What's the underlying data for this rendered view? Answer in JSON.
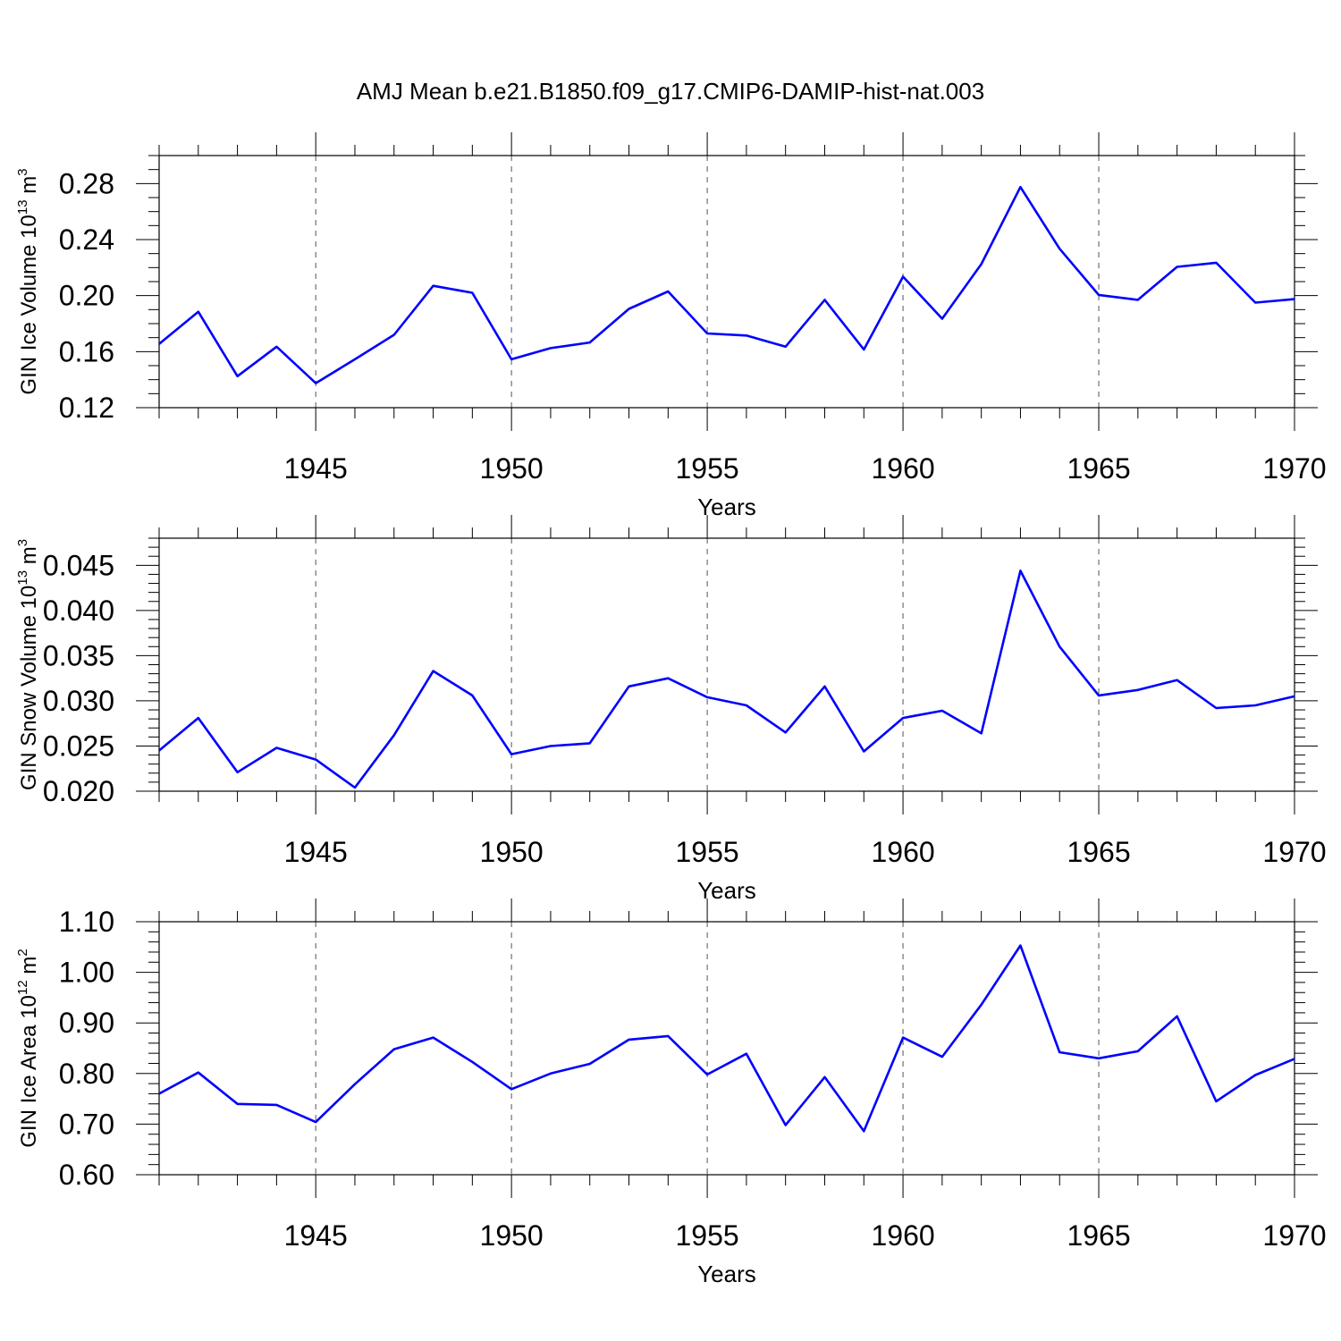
{
  "title": "AMJ Mean b.e21.B1850.f09_g17.CMIP6-DAMIP-hist-nat.003",
  "colors": {
    "line": "#0000ff",
    "axis": "#000000",
    "grid": "#555555"
  },
  "chart_data": [
    {
      "type": "line",
      "ylabel": {
        "base": "GIN Ice Volume 10",
        "exp": "13",
        "unit": " m",
        "unit_exp": "3"
      },
      "xlabel": "Years",
      "xlim": [
        1941,
        1970
      ],
      "ylim": [
        0.12,
        0.3
      ],
      "xticks": [
        1945,
        1950,
        1955,
        1960,
        1965,
        1970
      ],
      "xtick_labels": [
        "1945",
        "1950",
        "1955",
        "1960",
        "1965",
        "1970"
      ],
      "yticks": [
        0.12,
        0.16,
        0.2,
        0.24,
        0.28
      ],
      "ytick_labels": [
        "0.12",
        "0.16",
        "0.20",
        "0.24",
        "0.28"
      ],
      "y_minor_step": 0.01,
      "grid": "x-dashed",
      "series": [
        {
          "name": "GIN Ice Volume",
          "x": [
            1941,
            1942,
            1943,
            1944,
            1945,
            1946,
            1947,
            1948,
            1949,
            1950,
            1951,
            1952,
            1953,
            1954,
            1955,
            1956,
            1957,
            1958,
            1959,
            1960,
            1961,
            1962,
            1963,
            1964,
            1965,
            1966,
            1967,
            1968,
            1969,
            1970
          ],
          "values": [
            0.1655,
            0.1885,
            0.1425,
            0.1635,
            0.1375,
            0.1545,
            0.172,
            0.207,
            0.202,
            0.1545,
            0.1625,
            0.1665,
            0.1905,
            0.203,
            0.173,
            0.1715,
            0.1635,
            0.197,
            0.1615,
            0.2135,
            0.1835,
            0.2225,
            0.2775,
            0.2335,
            0.2005,
            0.197,
            0.2205,
            0.2235,
            0.195,
            0.1975
          ]
        }
      ]
    },
    {
      "type": "line",
      "ylabel": {
        "base": "GIN Snow Volume 10",
        "exp": "13",
        "unit": " m",
        "unit_exp": "3"
      },
      "xlabel": "Years",
      "xlim": [
        1941,
        1970
      ],
      "ylim": [
        0.02,
        0.048
      ],
      "xticks": [
        1945,
        1950,
        1955,
        1960,
        1965,
        1970
      ],
      "xtick_labels": [
        "1945",
        "1950",
        "1955",
        "1960",
        "1965",
        "1970"
      ],
      "yticks": [
        0.02,
        0.025,
        0.03,
        0.035,
        0.04,
        0.045
      ],
      "ytick_labels": [
        "0.020",
        "0.025",
        "0.030",
        "0.035",
        "0.040",
        "0.045"
      ],
      "y_minor_step": 0.001,
      "grid": "x-dashed",
      "series": [
        {
          "name": "GIN Snow Volume",
          "x": [
            1941,
            1942,
            1943,
            1944,
            1945,
            1946,
            1947,
            1948,
            1949,
            1950,
            1951,
            1952,
            1953,
            1954,
            1955,
            1956,
            1957,
            1958,
            1959,
            1960,
            1961,
            1962,
            1963,
            1964,
            1965,
            1966,
            1967,
            1968,
            1969,
            1970
          ],
          "values": [
            0.0245,
            0.0281,
            0.0221,
            0.0248,
            0.0235,
            0.0204,
            0.0262,
            0.0333,
            0.0306,
            0.0241,
            0.025,
            0.0253,
            0.0316,
            0.0325,
            0.0304,
            0.0295,
            0.0265,
            0.0316,
            0.0244,
            0.0281,
            0.0289,
            0.0264,
            0.0444,
            0.036,
            0.0306,
            0.0312,
            0.0323,
            0.0292,
            0.0295,
            0.0305
          ]
        }
      ]
    },
    {
      "type": "line",
      "ylabel": {
        "base": "GIN Ice Area 10",
        "exp": "12",
        "unit": " m",
        "unit_exp": "2"
      },
      "xlabel": "Years",
      "xlim": [
        1941,
        1970
      ],
      "ylim": [
        0.6,
        1.1
      ],
      "xticks": [
        1945,
        1950,
        1955,
        1960,
        1965,
        1970
      ],
      "xtick_labels": [
        "1945",
        "1950",
        "1955",
        "1960",
        "1965",
        "1970"
      ],
      "yticks": [
        0.6,
        0.7,
        0.8,
        0.9,
        1.0,
        1.1
      ],
      "ytick_labels": [
        "0.60",
        "0.70",
        "0.80",
        "0.90",
        "1.00",
        "1.10"
      ],
      "y_minor_step": 0.02,
      "grid": "x-dashed",
      "series": [
        {
          "name": "GIN Ice Area",
          "x": [
            1941,
            1942,
            1943,
            1944,
            1945,
            1946,
            1947,
            1948,
            1949,
            1950,
            1951,
            1952,
            1953,
            1954,
            1955,
            1956,
            1957,
            1958,
            1959,
            1960,
            1961,
            1962,
            1963,
            1964,
            1965,
            1966,
            1967,
            1968,
            1969,
            1970
          ],
          "values": [
            0.76,
            0.802,
            0.74,
            0.738,
            0.704,
            0.779,
            0.848,
            0.871,
            0.823,
            0.769,
            0.8,
            0.819,
            0.867,
            0.874,
            0.798,
            0.839,
            0.698,
            0.793,
            0.686,
            0.871,
            0.833,
            0.936,
            1.053,
            0.842,
            0.83,
            0.844,
            0.913,
            0.745,
            0.797,
            0.829
          ]
        }
      ]
    }
  ]
}
